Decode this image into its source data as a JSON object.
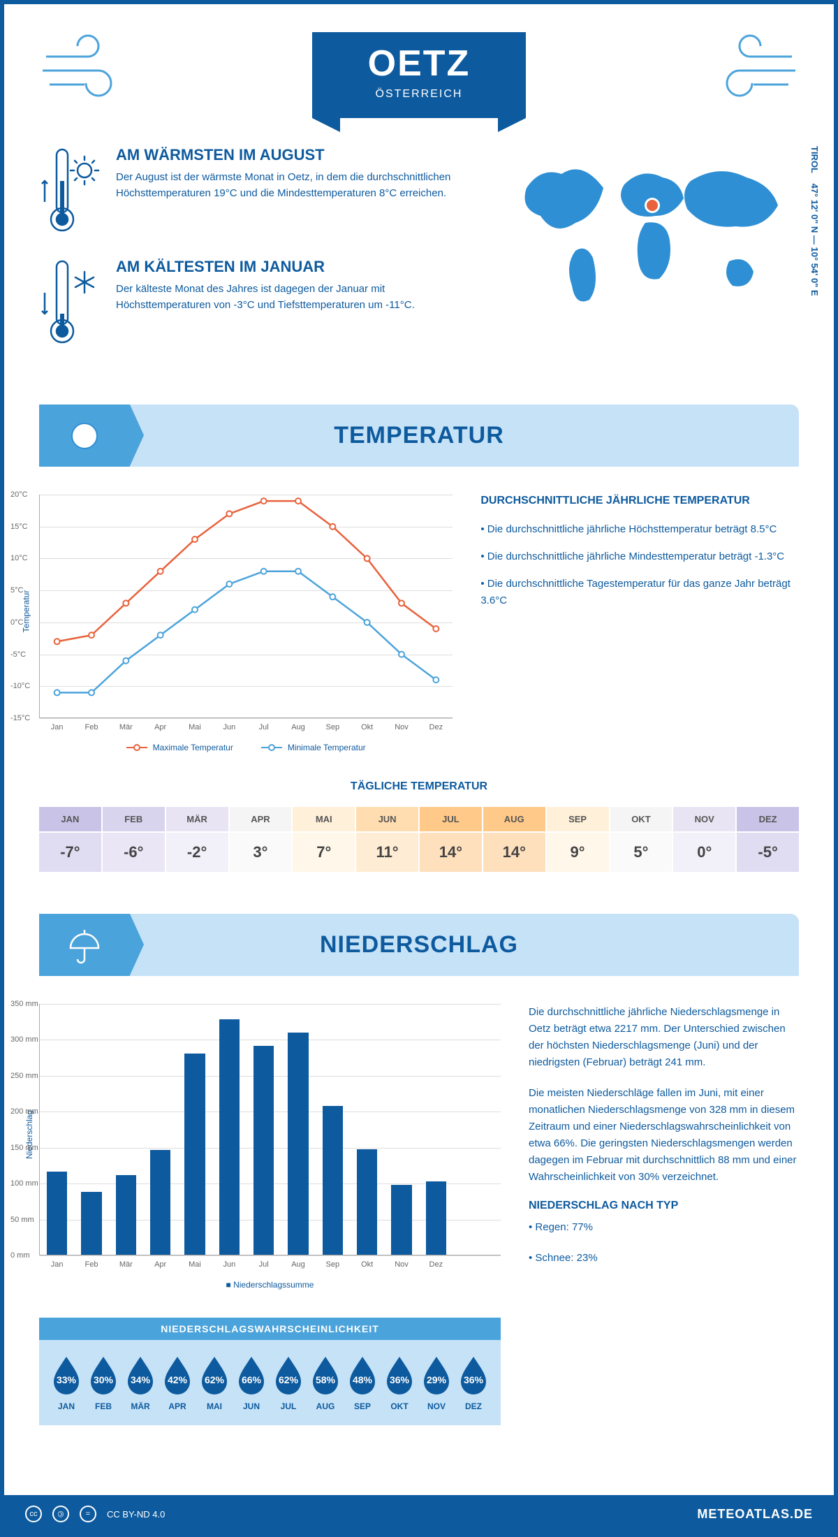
{
  "header": {
    "city": "OETZ",
    "country": "ÖSTERREICH"
  },
  "coords": {
    "text": "47° 12' 0\" N — 10° 54' 0\" E",
    "region": "TIROL"
  },
  "warmest": {
    "title": "AM WÄRMSTEN IM AUGUST",
    "text": "Der August ist der wärmste Monat in Oetz, in dem die durchschnittlichen Höchsttemperaturen 19°C und die Mindesttemperaturen 8°C erreichen."
  },
  "coldest": {
    "title": "AM KÄLTESTEN IM JANUAR",
    "text": "Der kälteste Monat des Jahres ist dagegen der Januar mit Höchsttemperaturen von -3°C und Tiefsttemperaturen um -11°C."
  },
  "temp_section": {
    "title": "TEMPERATUR"
  },
  "temp_chart": {
    "months": [
      "Jan",
      "Feb",
      "Mär",
      "Apr",
      "Mai",
      "Jun",
      "Jul",
      "Aug",
      "Sep",
      "Okt",
      "Nov",
      "Dez"
    ],
    "max": [
      -3,
      -2,
      3,
      8,
      13,
      17,
      19,
      19,
      15,
      10,
      3,
      -1
    ],
    "min": [
      -11,
      -11,
      -6,
      -2,
      2,
      6,
      8,
      8,
      4,
      0,
      -5,
      -9
    ],
    "max_color": "#e8623c",
    "min_color": "#4ba3db",
    "ylim": [
      -15,
      20
    ],
    "ytick_step": 5,
    "ylabel": "Temperatur",
    "legend_max": "Maximale Temperatur",
    "legend_min": "Minimale Temperatur"
  },
  "temp_info": {
    "title": "DURCHSCHNITTLICHE JÄHRLICHE TEMPERATUR",
    "p1": "• Die durchschnittliche jährliche Höchsttemperatur beträgt 8.5°C",
    "p2": "• Die durchschnittliche jährliche Mindesttemperatur beträgt -1.3°C",
    "p3": "• Die durchschnittliche Tagestemperatur für das ganze Jahr beträgt 3.6°C"
  },
  "daily": {
    "title": "TÄGLICHE TEMPERATUR",
    "months": [
      "JAN",
      "FEB",
      "MÄR",
      "APR",
      "MAI",
      "JUN",
      "JUL",
      "AUG",
      "SEP",
      "OKT",
      "NOV",
      "DEZ"
    ],
    "values": [
      "-7°",
      "-6°",
      "-2°",
      "3°",
      "7°",
      "11°",
      "14°",
      "14°",
      "9°",
      "5°",
      "0°",
      "-5°"
    ],
    "header_colors": [
      "#c9c3e8",
      "#d9d4ee",
      "#e8e4f3",
      "#f5f5f5",
      "#fff0d9",
      "#ffddb0",
      "#ffc98a",
      "#ffc98a",
      "#fff0d9",
      "#f5f5f5",
      "#e8e4f3",
      "#c9c3e8"
    ],
    "value_colors": [
      "#e0dcf1",
      "#eae6f5",
      "#f2f0f8",
      "#fafafa",
      "#fff7ea",
      "#ffecd4",
      "#ffe0bd",
      "#ffe0bd",
      "#fff7ea",
      "#fafafa",
      "#f2f0f8",
      "#e0dcf1"
    ]
  },
  "precip_section": {
    "title": "NIEDERSCHLAG"
  },
  "precip_chart": {
    "months": [
      "Jan",
      "Feb",
      "Mär",
      "Apr",
      "Mai",
      "Jun",
      "Jul",
      "Aug",
      "Sep",
      "Okt",
      "Nov",
      "Dez"
    ],
    "values": [
      116,
      88,
      111,
      146,
      280,
      328,
      291,
      309,
      207,
      147,
      97,
      102
    ],
    "bar_color": "#0d5a9e",
    "ylim": [
      0,
      350
    ],
    "ytick_step": 50,
    "ylabel": "Niederschlag",
    "legend": "Niederschlagssumme"
  },
  "precip_info": {
    "p1": "Die durchschnittliche jährliche Niederschlagsmenge in Oetz beträgt etwa 2217 mm. Der Unterschied zwischen der höchsten Niederschlagsmenge (Juni) und der niedrigsten (Februar) beträgt 241 mm.",
    "p2": "Die meisten Niederschläge fallen im Juni, mit einer monatlichen Niederschlagsmenge von 328 mm in diesem Zeitraum und einer Niederschlagswahrscheinlichkeit von etwa 66%. Die geringsten Niederschlagsmengen werden dagegen im Februar mit durchschnittlich 88 mm und einer Wahrscheinlichkeit von 30% verzeichnet.",
    "type_title": "NIEDERSCHLAG NACH TYP",
    "type_1": "• Regen: 77%",
    "type_2": "• Schnee: 23%"
  },
  "prob": {
    "title": "NIEDERSCHLAGSWAHRSCHEINLICHKEIT",
    "months": [
      "JAN",
      "FEB",
      "MÄR",
      "APR",
      "MAI",
      "JUN",
      "JUL",
      "AUG",
      "SEP",
      "OKT",
      "NOV",
      "DEZ"
    ],
    "values": [
      "33%",
      "30%",
      "34%",
      "42%",
      "62%",
      "66%",
      "62%",
      "58%",
      "48%",
      "36%",
      "29%",
      "36%"
    ],
    "drop_color": "#0d5a9e"
  },
  "footer": {
    "license": "CC BY-ND 4.0",
    "site": "METEOATLAS.DE"
  }
}
